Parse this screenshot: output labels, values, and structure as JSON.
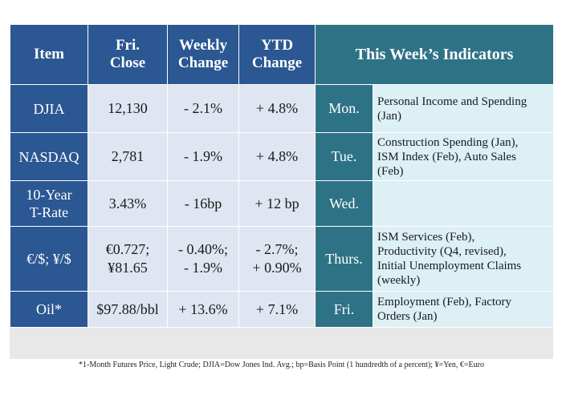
{
  "header": {
    "col1": "Item",
    "col2": [
      "Fri.",
      "Close"
    ],
    "col3": [
      "Weekly",
      "Change"
    ],
    "col4": [
      "YTD",
      "Change"
    ],
    "col5": "This Week’s Indicators"
  },
  "rows": [
    {
      "item": [
        "DJIA"
      ],
      "close": [
        "12,130"
      ],
      "weekly": [
        "- 2.1%"
      ],
      "ytd": [
        "+ 4.8%"
      ],
      "day": "Mon.",
      "indicators": [
        "Personal Income and Spending",
        "(Jan)"
      ]
    },
    {
      "item": [
        "NASDAQ"
      ],
      "close": [
        "2,781"
      ],
      "weekly": [
        "- 1.9%"
      ],
      "ytd": [
        "+ 4.8%"
      ],
      "day": "Tue.",
      "indicators": [
        "Construction Spending (Jan),",
        "ISM Index (Feb), Auto Sales",
        "(Feb)"
      ]
    },
    {
      "item": [
        "10-Year",
        "T-Rate"
      ],
      "close": [
        "3.43%"
      ],
      "weekly": [
        "- 16bp"
      ],
      "ytd": [
        "+ 12 bp"
      ],
      "day": "Wed.",
      "indicators": []
    },
    {
      "item": [
        "€/$; ¥/$"
      ],
      "close": [
        "€0.727;",
        "¥81.65"
      ],
      "weekly": [
        "- 0.40%;",
        "- 1.9%"
      ],
      "ytd": [
        "- 2.7%;",
        "+ 0.90%"
      ],
      "day": "Thurs.",
      "indicators": [
        "ISM Services (Feb),",
        "Productivity (Q4, revised),",
        "Initial Unemployment Claims",
        "(weekly)"
      ]
    },
    {
      "item": [
        "Oil*"
      ],
      "close": [
        "$97.88/bbl"
      ],
      "weekly": [
        "+ 13.6%"
      ],
      "ytd": [
        "+ 7.1%"
      ],
      "day": "Fri.",
      "indicators": [
        "Employment (Feb), Factory",
        "Orders (Jan)"
      ]
    }
  ],
  "footnote": "*1-Month Futures Price, Light Crude; DJIA=Dow Jones Ind. Avg.; bp=Basis Point (1 hundredth of a percent); ¥=Yen, €=Euro"
}
